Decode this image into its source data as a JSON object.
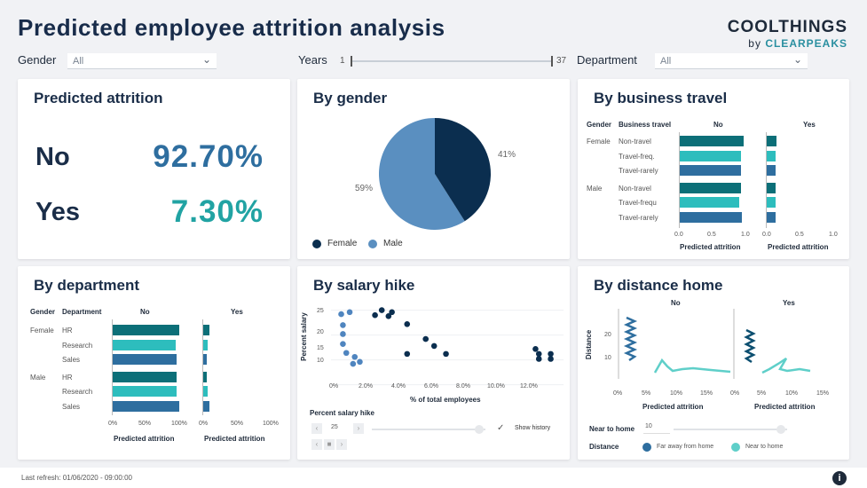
{
  "header": {
    "title": "Predicted employee attrition analysis",
    "brand_top": "COOLTHINGS",
    "brand_by": "by",
    "brand_bottom": "CLEARPEAKS"
  },
  "filters": {
    "gender_label": "Gender",
    "gender_value": "All",
    "years_label": "Years",
    "years_min": "1",
    "years_max": "37",
    "department_label": "Department",
    "department_value": "All"
  },
  "attrition": {
    "title": "Predicted attrition",
    "no_label": "No",
    "no_value": "92.70%",
    "yes_label": "Yes",
    "yes_value": "7.30%",
    "no_color": "#2e6e9f",
    "yes_color": "#21a3a3"
  },
  "gender": {
    "title": "By gender",
    "female_label": "Female",
    "male_label": "Male",
    "female_pct": "41%",
    "male_pct": "59%",
    "female_color": "#0b2e4f",
    "male_color": "#5a8fc0"
  },
  "travel": {
    "title": "By business travel",
    "col_gender": "Gender",
    "col_travel": "Business travel",
    "col_no": "No",
    "col_yes": "Yes",
    "rows": [
      {
        "gender": "Female",
        "label": "Non-travel",
        "no": 0.97,
        "yes": 0.16
      },
      {
        "gender": "",
        "label": "Travel-freq.",
        "no": 0.93,
        "yes": 0.15
      },
      {
        "gender": "",
        "label": "Travel-rarely",
        "no": 0.93,
        "yes": 0.15
      },
      {
        "gender": "Male",
        "label": "Non-travel",
        "no": 0.93,
        "yes": 0.15
      },
      {
        "gender": "",
        "label": "Travel-frequ",
        "no": 0.91,
        "yes": 0.15
      },
      {
        "gender": "",
        "label": "Travel-rarely",
        "no": 0.95,
        "yes": 0.15
      }
    ],
    "ticks": [
      "0.0",
      "0.5",
      "1.0"
    ],
    "xlabel": "Predicted attrition"
  },
  "dept": {
    "title": "By department",
    "col_gender": "Gender",
    "col_dept": "Department",
    "col_no": "No",
    "col_yes": "Yes",
    "rows": [
      {
        "gender": "Female",
        "label": "HR",
        "no": 0.97,
        "yes": 0.1
      },
      {
        "gender": "",
        "label": "Research",
        "no": 0.92,
        "yes": 0.08
      },
      {
        "gender": "",
        "label": "Sales",
        "no": 0.93,
        "yes": 0.07
      },
      {
        "gender": "Male",
        "label": "HR",
        "no": 0.93,
        "yes": 0.07
      },
      {
        "gender": "",
        "label": "Research",
        "no": 0.93,
        "yes": 0.08
      },
      {
        "gender": "",
        "label": "Sales",
        "no": 0.97,
        "yes": 0.1
      }
    ],
    "ticks": [
      "0%",
      "50%",
      "100%"
    ],
    "xlabel": "Predicted attrition"
  },
  "salary": {
    "title": "By salary hike",
    "ylabel": "Percent salary",
    "xlabel": "% of total employees",
    "yticks": [
      "25",
      "20",
      "15",
      "10"
    ],
    "xticks": [
      "0%",
      "2.0%",
      "4.0%",
      "6.0%",
      "8.0%",
      "10.0%",
      "12.0%"
    ],
    "control_label": "Percent salary hike",
    "control_value": "25",
    "show_history": "Show history",
    "check": "✓"
  },
  "distance": {
    "title": "By distance home",
    "col_no": "No",
    "col_yes": "Yes",
    "ylabel": "Distance",
    "yticks": [
      "20",
      "10"
    ],
    "xticks": [
      "0%",
      "5%",
      "10%",
      "15%"
    ],
    "xlabel": "Predicted attrition",
    "near_label": "Near to home",
    "near_value": "10",
    "legend_label": "Distance",
    "legend_far": "Far away from home",
    "legend_near": "Near to home",
    "far_color": "#2e6e9f",
    "near_color": "#5fcfc9"
  },
  "footer": {
    "last_refresh": "Last refresh: 01/06/2020 - 09:00:00",
    "info": "i"
  },
  "chart_data": [
    {
      "type": "pie",
      "title": "By gender",
      "labels": [
        "Female",
        "Male"
      ],
      "values": [
        41,
        59
      ]
    },
    {
      "type": "bar",
      "title": "By business travel",
      "categories": [
        "Female Non-travel",
        "Female Travel-freq.",
        "Female Travel-rarely",
        "Male Non-travel",
        "Male Travel-frequ",
        "Male Travel-rarely"
      ],
      "series": [
        {
          "name": "No",
          "values": [
            0.97,
            0.93,
            0.93,
            0.93,
            0.91,
            0.95
          ]
        },
        {
          "name": "Yes",
          "values": [
            0.16,
            0.15,
            0.15,
            0.15,
            0.15,
            0.15
          ]
        }
      ],
      "xlabel": "Predicted attrition",
      "xlim": [
        0,
        1
      ]
    },
    {
      "type": "bar",
      "title": "By department",
      "categories": [
        "Female HR",
        "Female Research",
        "Female Sales",
        "Male HR",
        "Male Research",
        "Male Sales"
      ],
      "series": [
        {
          "name": "No",
          "values": [
            97,
            92,
            93,
            93,
            93,
            97
          ]
        },
        {
          "name": "Yes",
          "values": [
            10,
            8,
            7,
            7,
            8,
            10
          ]
        }
      ],
      "xlabel": "Predicted attrition",
      "xlim": [
        0,
        100
      ]
    },
    {
      "type": "scatter",
      "title": "By salary hike",
      "xlabel": "% of total employees",
      "ylabel": "Percent salary",
      "xlim": [
        0,
        13.5
      ],
      "ylim": [
        11,
        26
      ],
      "series": [
        {
          "color": "#4f85bf",
          "points": [
            [
              0.5,
              24.2
            ],
            [
              1.0,
              24.6
            ],
            [
              0.6,
              22.0
            ],
            [
              0.6,
              20.2
            ],
            [
              0.6,
              18.2
            ],
            [
              0.8,
              16.4
            ],
            [
              1.3,
              15.6
            ],
            [
              1.6,
              14.6
            ],
            [
              1.2,
              14.2
            ]
          ]
        },
        {
          "color": "#0b2e4f",
          "points": [
            [
              2.5,
              24.0
            ],
            [
              2.9,
              25.0
            ],
            [
              3.5,
              24.6
            ],
            [
              3.3,
              23.8
            ],
            [
              4.4,
              22.2
            ],
            [
              4.4,
              16.2
            ],
            [
              5.5,
              19.2
            ],
            [
              6.0,
              17.8
            ],
            [
              6.7,
              16.2
            ],
            [
              12.0,
              17.2
            ],
            [
              12.2,
              16.2
            ],
            [
              12.2,
              15.2
            ],
            [
              12.9,
              16.2
            ],
            [
              12.9,
              15.2
            ]
          ]
        }
      ]
    },
    {
      "type": "line",
      "title": "By distance home",
      "ylabel": "Distance",
      "xlabel": "Predicted attrition",
      "ylim": [
        0,
        30
      ],
      "xlim": [
        0,
        18
      ]
    }
  ]
}
